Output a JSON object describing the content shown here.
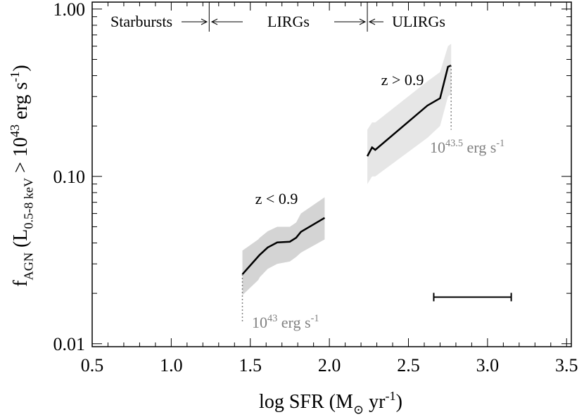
{
  "chart_data": {
    "type": "line",
    "xlim": [
      0.5,
      3.53
    ],
    "ylim": [
      0.0096,
      1.1
    ],
    "log_y": true,
    "xticks": [
      0.5,
      {
        "value": 1,
        "label": "1.0"
      },
      1.5,
      {
        "value": 2,
        "label": "2.0"
      },
      2.5,
      {
        "value": 3,
        "label": "3.0"
      },
      3.5
    ],
    "yticks": [
      {
        "value": 0.01,
        "label": "0.01"
      },
      {
        "value": 0.1,
        "label": "0.10"
      },
      {
        "value": 1,
        "label": "1.00"
      }
    ],
    "x_label": [
      {
        "text": "log SFR (M"
      },
      {
        "text": "⊙",
        "pos": "sub"
      },
      {
        "text": " yr"
      },
      {
        "text": "-1",
        "pos": "sup"
      },
      {
        "text": ")"
      }
    ],
    "y_label": [
      {
        "text": "f"
      },
      {
        "text": "AGN",
        "pos": "sub"
      },
      {
        "text": " (L"
      },
      {
        "text": "0.5-8 keV",
        "pos": "sub"
      },
      {
        "text": " > 10"
      },
      {
        "text": "43",
        "pos": "sup"
      },
      {
        "text": " erg s"
      },
      {
        "text": "-1",
        "pos": "sup"
      },
      {
        "text": ")"
      }
    ],
    "regions": [
      "Starbursts",
      "LIRGs",
      "ULIRGs"
    ],
    "dividers": [
      1.24,
      2.24
    ],
    "series": [
      {
        "name": "z < 0.9",
        "color": "#000000",
        "band_color": "#d4d4d4",
        "x": [
          1.45,
          1.55,
          1.56,
          1.61,
          1.67,
          1.75,
          1.79,
          1.82,
          1.97
        ],
        "values": [
          0.026,
          0.0332,
          0.034,
          0.0376,
          0.0403,
          0.0407,
          0.043,
          0.0466,
          0.0565
        ],
        "upper": [
          0.036,
          0.042,
          0.043,
          0.047,
          0.05,
          0.05,
          0.053,
          0.06,
          0.075
        ],
        "lower": [
          0.0195,
          0.024,
          0.025,
          0.028,
          0.03,
          0.031,
          0.033,
          0.035,
          0.042
        ]
      },
      {
        "name": "z > 0.9",
        "color": "#000000",
        "band_color": "#e6e6e6",
        "x": [
          2.24,
          2.27,
          2.29,
          2.62,
          2.7,
          2.75,
          2.77
        ],
        "values": [
          0.132,
          0.149,
          0.144,
          0.265,
          0.293,
          0.452,
          0.46
        ],
        "upper": [
          0.19,
          0.21,
          0.21,
          0.37,
          0.42,
          0.6,
          0.62
        ],
        "lower": [
          0.09,
          0.1,
          0.1,
          0.17,
          0.2,
          0.3,
          0.31
        ]
      }
    ],
    "thresholds": [
      {
        "x": 1.45,
        "y_top": 0.026,
        "y_bottom": 0.0135,
        "label": [
          {
            "text": "10"
          },
          {
            "text": "43",
            "pos": "sup"
          },
          {
            "text": " erg s"
          },
          {
            "text": "-1",
            "pos": "sup"
          }
        ]
      },
      {
        "x": 2.77,
        "y_top": 0.46,
        "y_bottom": 0.19,
        "label": [
          {
            "text": "10"
          },
          {
            "text": "43.5",
            "pos": "sup"
          },
          {
            "text": " erg s"
          },
          {
            "text": "-1",
            "pos": "sup"
          }
        ]
      }
    ],
    "error_bar": {
      "x": [
        2.66,
        3.15
      ],
      "y": 0.019
    }
  }
}
